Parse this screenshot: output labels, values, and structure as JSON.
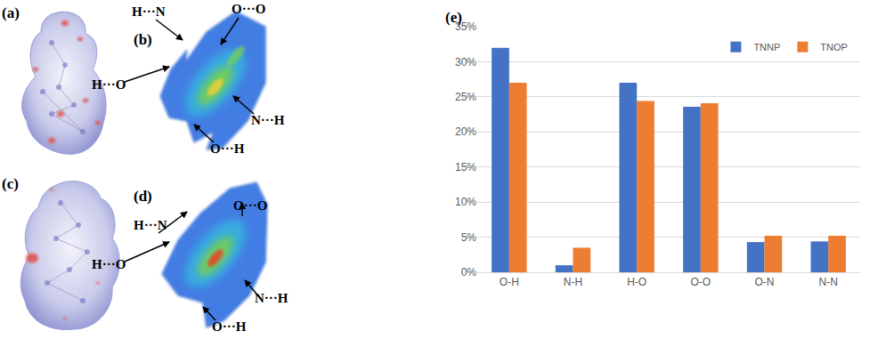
{
  "panels": {
    "a": "(a)",
    "b": "(b)",
    "c": "(c)",
    "d": "(d)",
    "e": "(e)"
  },
  "fingerprint_labels": {
    "b": [
      "H···N",
      "O···O",
      "H···O",
      "N···H",
      "O···H"
    ],
    "d": [
      "H···N",
      "O···O",
      "H···O",
      "N···H",
      "O···H"
    ]
  },
  "chart_data": {
    "type": "bar",
    "categories": [
      "O-H",
      "N-H",
      "H-O",
      "O-O",
      "O-N",
      "N-N"
    ],
    "series": [
      {
        "name": "TNNP",
        "color": "#4472C4",
        "values": [
          32.0,
          1.0,
          27.0,
          23.6,
          4.3,
          4.4
        ]
      },
      {
        "name": "TNOP",
        "color": "#ED7D31",
        "values": [
          27.0,
          3.5,
          24.4,
          24.1,
          5.2,
          5.2
        ]
      }
    ],
    "ylim": [
      0,
      35
    ],
    "yticks": [
      {
        "value": 0,
        "label": "0%"
      },
      {
        "value": 5,
        "label": "5%"
      },
      {
        "value": 10,
        "label": "10%"
      },
      {
        "value": 15,
        "label": "15%"
      },
      {
        "value": 20,
        "label": "20%"
      },
      {
        "value": 25,
        "label": "25%"
      },
      {
        "value": 30,
        "label": "30%"
      },
      {
        "value": 35,
        "label": "35%"
      }
    ],
    "grid": true,
    "legend": "upper right"
  }
}
